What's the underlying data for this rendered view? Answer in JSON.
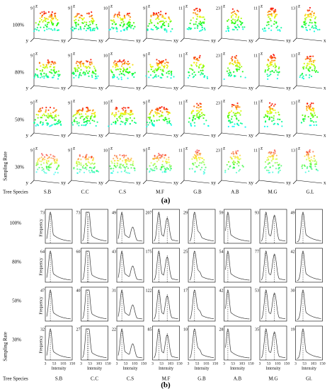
{
  "panel_a": {
    "label": "(a)",
    "y_axis_title": "Sampling Rate",
    "x_axis_title": "Tree Species",
    "rows": [
      "100%",
      "80%",
      "50%",
      "30%"
    ],
    "species": [
      "S.B",
      "C.C",
      "C.S",
      "M.F",
      "G.B",
      "A.B",
      "M.G",
      "G.L"
    ],
    "z_max": [
      "9",
      "9",
      "10",
      "9",
      "11",
      "23",
      "11",
      "13"
    ],
    "axis_letters": [
      "x",
      "y",
      "z"
    ]
  },
  "panel_b": {
    "label": "(b)",
    "y_axis_title": "Sampling Rate",
    "x_axis_title": "Tree Species",
    "rows": [
      "100%",
      "80%",
      "50%",
      "30%"
    ],
    "species": [
      "S.B",
      "C.C",
      "C.S",
      "M.F",
      "G.B",
      "A.B",
      "M.G",
      "Gl."
    ],
    "frequency_label": "Frequency",
    "intensity_label": "Intensity",
    "xticks": [
      "3",
      "53",
      "103",
      "150"
    ],
    "peaks": [
      [
        73,
        73,
        49,
        207,
        29,
        59,
        93,
        49
      ],
      [
        64,
        60,
        43,
        175,
        25,
        54,
        77,
        42
      ],
      [
        47,
        40,
        31,
        122,
        17,
        42,
        53,
        30
      ],
      [
        32,
        27,
        22,
        85,
        10,
        28,
        35,
        19
      ]
    ]
  }
}
